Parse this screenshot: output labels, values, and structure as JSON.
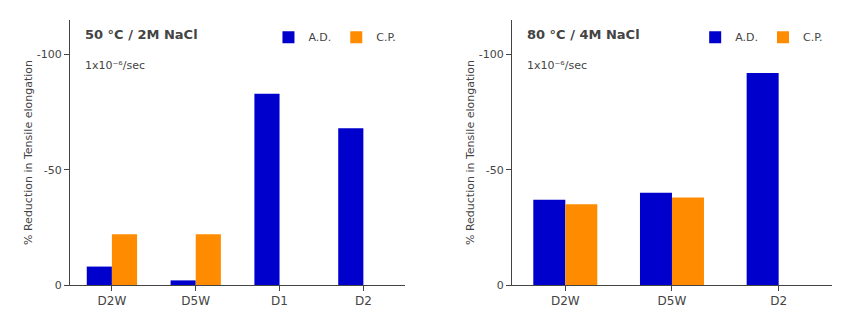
{
  "chart_data": [
    {
      "type": "bar",
      "title": "50 °C / 2M NaCl",
      "annotations": [
        "1x10⁻⁶/sec"
      ],
      "categories": [
        "D2W",
        "D5W",
        "D1",
        "D2"
      ],
      "series": [
        {
          "name": "A.D.",
          "color": "#0000CC",
          "values": [
            -8,
            -2,
            -83,
            -68
          ]
        },
        {
          "name": "C.P.",
          "color": "#FF8C00",
          "values": [
            -22,
            -22,
            null,
            null
          ]
        }
      ],
      "ylim": [
        0,
        -115
      ],
      "yticks": [
        0,
        -50,
        -100
      ],
      "ylabel": "% Reduction in Tensile elongation",
      "legend": "upper right",
      "grid": false
    },
    {
      "type": "bar",
      "title": "80 °C / 4M NaCl",
      "annotations": [
        "1x10⁻⁶/sec"
      ],
      "categories": [
        "D2W",
        "D5W",
        "D2"
      ],
      "series": [
        {
          "name": "A.D.",
          "color": "#0000CC",
          "values": [
            -37,
            -40,
            -92
          ]
        },
        {
          "name": "C.P.",
          "color": "#FF8C00",
          "values": [
            -35,
            -38,
            null
          ]
        }
      ],
      "ylim": [
        0,
        -115
      ],
      "yticks": [
        0,
        -50,
        -100
      ],
      "ylabel": "% Reduction in Tensile elongation",
      "legend": "upper right",
      "grid": false
    }
  ]
}
